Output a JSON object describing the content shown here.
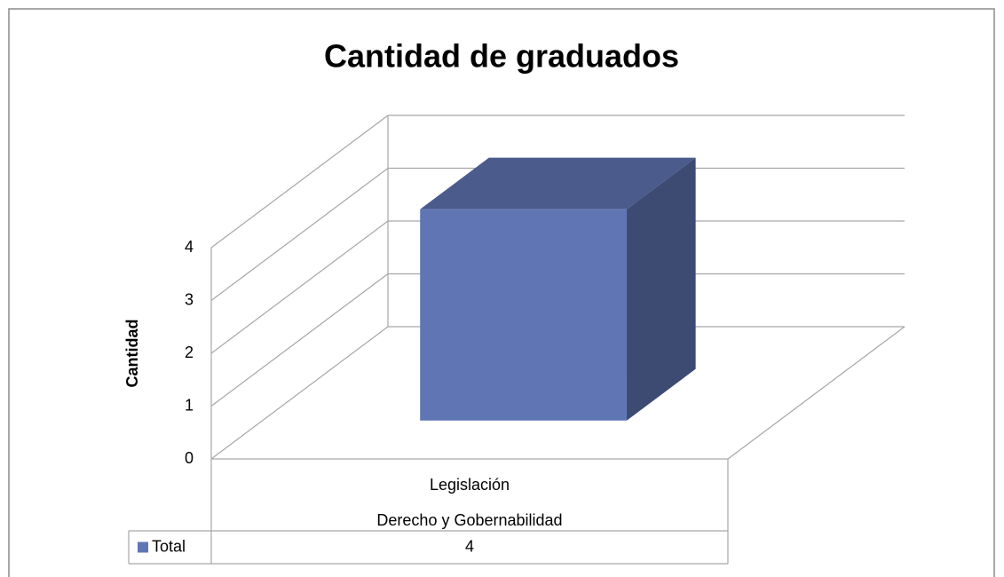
{
  "chart_data": {
    "type": "bar3d",
    "title": "Cantidad de graduados",
    "y_label": "Cantidad",
    "categories": [
      "Legislación"
    ],
    "category_groups": [
      "Derecho y Gobernabilidad"
    ],
    "series": [
      {
        "name": "Total",
        "color": "#6076b4",
        "values": [
          4
        ]
      }
    ],
    "ylim": [
      0,
      4
    ],
    "yticks": [
      0,
      1,
      2,
      3,
      4
    ],
    "grid": true,
    "data_table": true
  }
}
